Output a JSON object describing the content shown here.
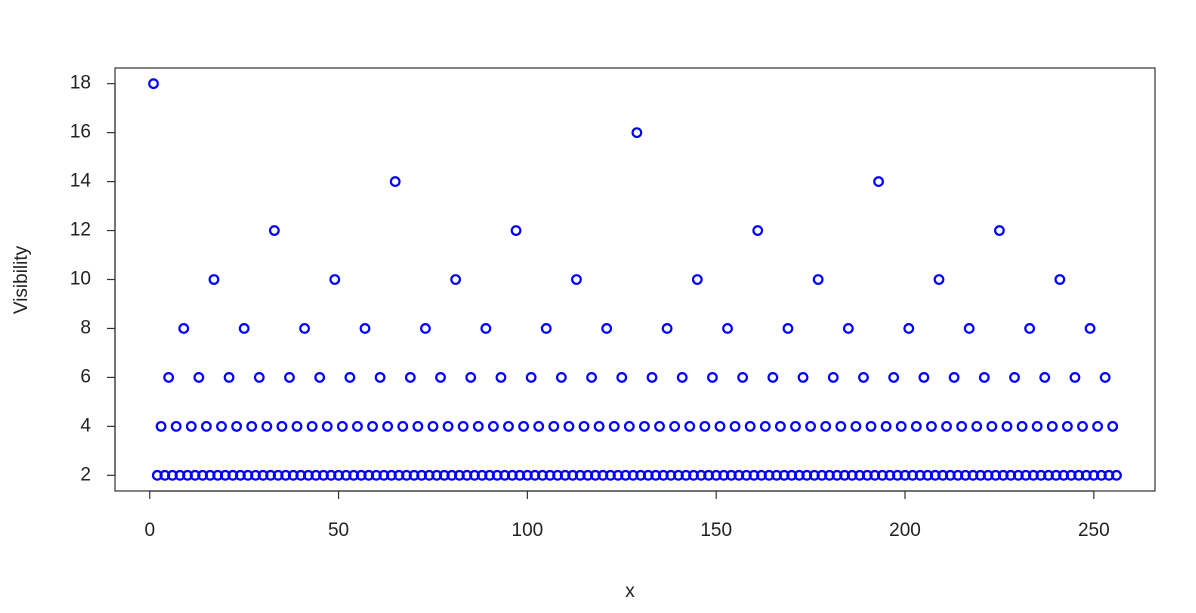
{
  "chart_data": {
    "type": "scatter",
    "x_label": "x",
    "y_label": "Visibility",
    "color": "#0000ff",
    "xlim": [
      -9.2,
      266.2
    ],
    "ylim": [
      1.36,
      18.64
    ],
    "xticks": [
      0,
      50,
      100,
      150,
      200,
      250
    ],
    "yticks": [
      2,
      4,
      6,
      8,
      10,
      12,
      14,
      16,
      18
    ],
    "x": [
      1,
      2,
      3,
      4,
      5,
      6,
      7,
      8,
      9,
      10,
      11,
      12,
      13,
      14,
      15,
      16,
      17,
      18,
      19,
      20,
      21,
      22,
      23,
      24,
      25,
      26,
      27,
      28,
      29,
      30,
      31,
      32,
      33,
      34,
      35,
      36,
      37,
      38,
      39,
      40,
      41,
      42,
      43,
      44,
      45,
      46,
      47,
      48,
      49,
      50,
      51,
      52,
      53,
      54,
      55,
      56,
      57,
      58,
      59,
      60,
      61,
      62,
      63,
      64,
      65,
      66,
      67,
      68,
      69,
      70,
      71,
      72,
      73,
      74,
      75,
      76,
      77,
      78,
      79,
      80,
      81,
      82,
      83,
      84,
      85,
      86,
      87,
      88,
      89,
      90,
      91,
      92,
      93,
      94,
      95,
      96,
      97,
      98,
      99,
      100,
      101,
      102,
      103,
      104,
      105,
      106,
      107,
      108,
      109,
      110,
      111,
      112,
      113,
      114,
      115,
      116,
      117,
      118,
      119,
      120,
      121,
      122,
      123,
      124,
      125,
      126,
      127,
      128,
      129,
      130,
      131,
      132,
      133,
      134,
      135,
      136,
      137,
      138,
      139,
      140,
      141,
      142,
      143,
      144,
      145,
      146,
      147,
      148,
      149,
      150,
      151,
      152,
      153,
      154,
      155,
      156,
      157,
      158,
      159,
      160,
      161,
      162,
      163,
      164,
      165,
      166,
      167,
      168,
      169,
      170,
      171,
      172,
      173,
      174,
      175,
      176,
      177,
      178,
      179,
      180,
      181,
      182,
      183,
      184,
      185,
      186,
      187,
      188,
      189,
      190,
      191,
      192,
      193,
      194,
      195,
      196,
      197,
      198,
      199,
      200,
      201,
      202,
      203,
      204,
      205,
      206,
      207,
      208,
      209,
      210,
      211,
      212,
      213,
      214,
      215,
      216,
      217,
      218,
      219,
      220,
      221,
      222,
      223,
      224,
      225,
      226,
      227,
      228,
      229,
      230,
      231,
      232,
      233,
      234,
      235,
      236,
      237,
      238,
      239,
      240,
      241,
      242,
      243,
      244,
      245,
      246,
      247,
      248,
      249,
      250,
      251,
      252,
      253,
      254,
      255,
      256
    ],
    "values": [
      18,
      2,
      4,
      2,
      6,
      2,
      4,
      2,
      8,
      2,
      4,
      2,
      6,
      2,
      4,
      2,
      10,
      2,
      4,
      2,
      6,
      2,
      4,
      2,
      8,
      2,
      4,
      2,
      6,
      2,
      4,
      2,
      12,
      2,
      4,
      2,
      6,
      2,
      4,
      2,
      8,
      2,
      4,
      2,
      6,
      2,
      4,
      2,
      10,
      2,
      4,
      2,
      6,
      2,
      4,
      2,
      8,
      2,
      4,
      2,
      6,
      2,
      4,
      2,
      14,
      2,
      4,
      2,
      6,
      2,
      4,
      2,
      8,
      2,
      4,
      2,
      6,
      2,
      4,
      2,
      10,
      2,
      4,
      2,
      6,
      2,
      4,
      2,
      8,
      2,
      4,
      2,
      6,
      2,
      4,
      2,
      12,
      2,
      4,
      2,
      6,
      2,
      4,
      2,
      8,
      2,
      4,
      2,
      6,
      2,
      4,
      2,
      10,
      2,
      4,
      2,
      6,
      2,
      4,
      2,
      8,
      2,
      4,
      2,
      6,
      2,
      4,
      2,
      16,
      2,
      4,
      2,
      6,
      2,
      4,
      2,
      8,
      2,
      4,
      2,
      6,
      2,
      4,
      2,
      10,
      2,
      4,
      2,
      6,
      2,
      4,
      2,
      8,
      2,
      4,
      2,
      6,
      2,
      4,
      2,
      12,
      2,
      4,
      2,
      6,
      2,
      4,
      2,
      8,
      2,
      4,
      2,
      6,
      2,
      4,
      2,
      10,
      2,
      4,
      2,
      6,
      2,
      4,
      2,
      8,
      2,
      4,
      2,
      6,
      2,
      4,
      2,
      14,
      2,
      4,
      2,
      6,
      2,
      4,
      2,
      8,
      2,
      4,
      2,
      6,
      2,
      4,
      2,
      10,
      2,
      4,
      2,
      6,
      2,
      4,
      2,
      8,
      2,
      4,
      2,
      6,
      2,
      4,
      2,
      12,
      2,
      4,
      2,
      6,
      2,
      4,
      2,
      8,
      2,
      4,
      2,
      6,
      2,
      4,
      2,
      10,
      2,
      4,
      2,
      6,
      2,
      4,
      2,
      8,
      2,
      4,
      2,
      6,
      2,
      4,
      2
    ]
  }
}
